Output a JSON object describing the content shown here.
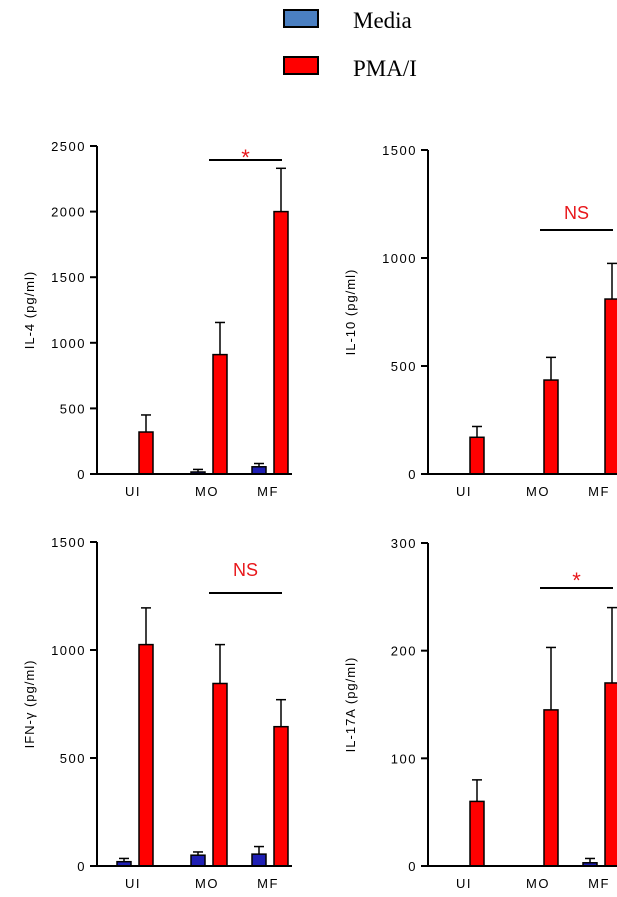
{
  "legend": {
    "items": [
      {
        "label": "Media",
        "color": "#4a7fc1"
      },
      {
        "label": "PMA/I",
        "color": "#ff0000"
      }
    ]
  },
  "colors": {
    "media_bar": "#1f1fb4",
    "pma_bar": "#ff0000",
    "significance": "#e8171b"
  },
  "chart_data": [
    {
      "type": "bar",
      "ylabel": "IL-4 (pg/ml)",
      "categories": [
        "UI",
        "MO",
        "MF"
      ],
      "ylim": [
        0,
        2500
      ],
      "yticks": [
        0,
        500,
        1000,
        1500,
        2000,
        2500
      ],
      "series": [
        {
          "name": "Media",
          "values": [
            0,
            15,
            55
          ],
          "errors": [
            0,
            20,
            25
          ]
        },
        {
          "name": "PMA/I",
          "values": [
            320,
            910,
            2000
          ],
          "errors": [
            130,
            245,
            330
          ]
        }
      ],
      "significance": {
        "label": "*",
        "from": "MO",
        "to": "MF"
      }
    },
    {
      "type": "bar",
      "ylabel": "IL-10 (pg/ml)",
      "categories": [
        "UI",
        "MO",
        "MF"
      ],
      "ylim": [
        0,
        1500
      ],
      "yticks": [
        0,
        500,
        1000,
        1500
      ],
      "series": [
        {
          "name": "Media",
          "values": [
            0,
            0,
            0
          ],
          "errors": [
            0,
            0,
            0
          ]
        },
        {
          "name": "PMA/I",
          "values": [
            170,
            435,
            810
          ],
          "errors": [
            50,
            105,
            165
          ]
        }
      ],
      "significance": {
        "label": "NS",
        "from": "MO",
        "to": "MF"
      }
    },
    {
      "type": "bar",
      "ylabel": "IFN-γ (pg/ml)",
      "categories": [
        "UI",
        "MO",
        "MF"
      ],
      "ylim": [
        0,
        1500
      ],
      "yticks": [
        0,
        500,
        1000,
        1500
      ],
      "series": [
        {
          "name": "Media",
          "values": [
            20,
            50,
            55
          ],
          "errors": [
            15,
            15,
            35
          ]
        },
        {
          "name": "PMA/I",
          "values": [
            1025,
            845,
            645
          ],
          "errors": [
            170,
            180,
            125
          ]
        }
      ],
      "significance": {
        "label": "NS",
        "from": "MO",
        "to": "MF"
      }
    },
    {
      "type": "bar",
      "ylabel": "IL-17A (pg/ml)",
      "categories": [
        "UI",
        "MO",
        "MF"
      ],
      "ylim": [
        0,
        300
      ],
      "yticks": [
        0,
        100,
        200,
        300
      ],
      "series": [
        {
          "name": "Media",
          "values": [
            0,
            0,
            3
          ],
          "errors": [
            0,
            0,
            4
          ]
        },
        {
          "name": "PMA/I",
          "values": [
            60,
            145,
            170
          ],
          "errors": [
            20,
            58,
            70
          ]
        }
      ],
      "significance": {
        "label": "*",
        "from": "MO",
        "to": "MF"
      }
    }
  ]
}
